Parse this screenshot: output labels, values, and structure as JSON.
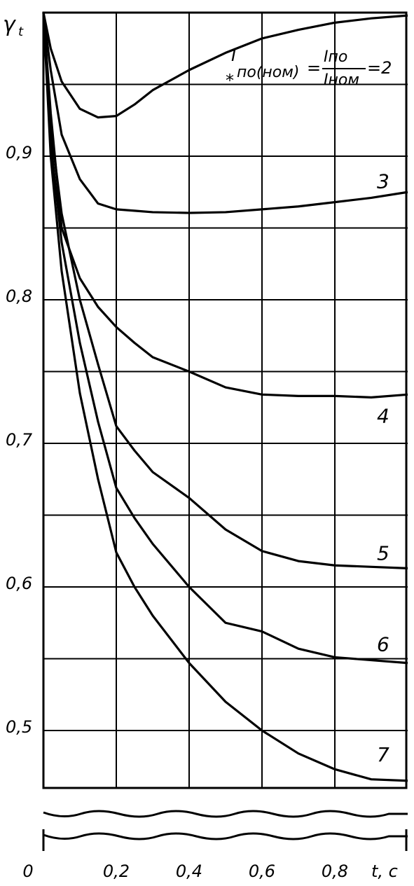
{
  "chart_data": {
    "type": "line",
    "ylabel": "γ",
    "ylabel_sub": "t",
    "xlabel": "t, c",
    "x": [
      0,
      0.02,
      0.05,
      0.1,
      0.15,
      0.2,
      0.25,
      0.3,
      0.4,
      0.5,
      0.6,
      0.7,
      0.8,
      0.9,
      1.0
    ],
    "series": [
      {
        "color": "#000000",
        "values": [
          1.0,
          0.975,
          0.952,
          0.933,
          0.927,
          0.928,
          0.936,
          0.946,
          0.96,
          0.972,
          0.982,
          0.988,
          0.993,
          0.996,
          0.998
        ]
      },
      {
        "name": "3",
        "color": "#000000",
        "values": [
          1.0,
          0.96,
          0.915,
          0.884,
          0.867,
          0.863,
          0.862,
          0.861,
          0.8605,
          0.861,
          0.863,
          0.865,
          0.868,
          0.871,
          0.875
        ]
      },
      {
        "name": "4",
        "color": "#000000",
        "values": [
          1.0,
          0.93,
          0.85,
          0.815,
          0.795,
          0.781,
          0.77,
          0.76,
          0.75,
          0.739,
          0.734,
          0.733,
          0.733,
          0.732,
          0.734
        ]
      },
      {
        "name": "5",
        "color": "#000000",
        "values": [
          1.0,
          0.92,
          0.86,
          0.8,
          0.755,
          0.712,
          0.695,
          0.68,
          0.662,
          0.64,
          0.625,
          0.618,
          0.615,
          0.614,
          0.613
        ]
      },
      {
        "name": "6",
        "color": "#000000",
        "values": [
          1.0,
          0.91,
          0.84,
          0.77,
          0.715,
          0.669,
          0.648,
          0.63,
          0.6,
          0.575,
          0.569,
          0.557,
          0.551,
          0.549,
          0.547
        ]
      },
      {
        "name": "7",
        "color": "#000000",
        "values": [
          1.0,
          0.9,
          0.82,
          0.735,
          0.675,
          0.624,
          0.6,
          0.58,
          0.547,
          0.52,
          0.5,
          0.484,
          0.473,
          0.466,
          0.465
        ]
      }
    ],
    "annotation": {
      "symbol": "I",
      "star": "*",
      "subscript": "по(ном)",
      "equals": "=",
      "numerator": "Iпо",
      "denominator": "Iном",
      "result": "=2"
    },
    "xlim": [
      0,
      1.0
    ],
    "ylim": [
      0.46,
      1.0
    ],
    "xticks": [
      0,
      {
        "value": 0.2,
        "label": "0,2"
      },
      {
        "value": 0.4,
        "label": "0,4"
      },
      {
        "value": 0.6,
        "label": "0,6"
      },
      {
        "value": 0.8,
        "label": "0,8"
      }
    ],
    "yticks": [
      {
        "value": 0.5,
        "label": "0,5"
      },
      {
        "value": 0.6,
        "label": "0,6"
      },
      {
        "value": 0.7,
        "label": "0,7"
      },
      {
        "value": 0.8,
        "label": "0,8"
      },
      {
        "value": 0.9,
        "label": "0,9"
      }
    ],
    "minor_grid": [
      0.55,
      0.65,
      0.75,
      0.85,
      0.95
    ],
    "grid": true
  }
}
